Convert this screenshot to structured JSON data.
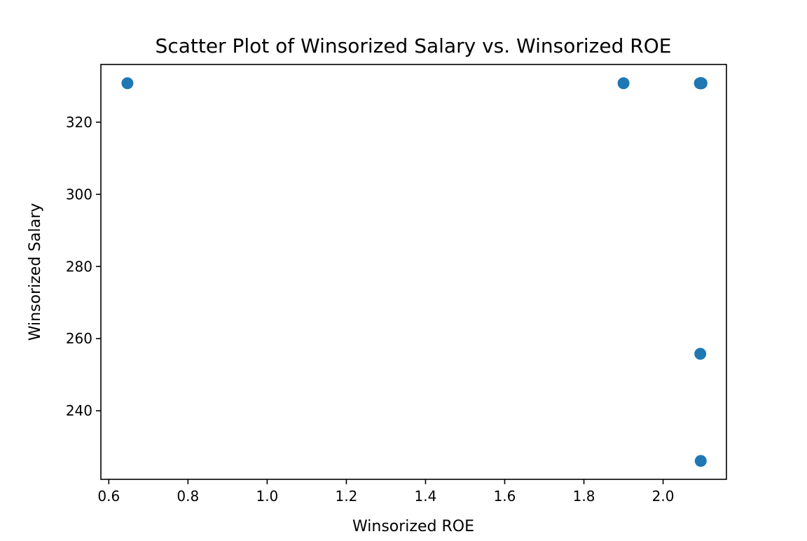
{
  "chart_data": {
    "type": "scatter",
    "title": "Scatter Plot of Winsorized Salary vs. Winsorized ROE",
    "xlabel": "Winsorized ROE",
    "ylabel": "Winsorized Salary",
    "xlim": [
      0.58,
      2.16
    ],
    "ylim": [
      221,
      336
    ],
    "xticks": [
      0.6,
      0.8,
      1.0,
      1.2,
      1.4,
      1.6,
      1.8,
      2.0
    ],
    "xtick_labels": [
      "0.6",
      "0.8",
      "1.0",
      "1.2",
      "1.4",
      "1.6",
      "1.8",
      "2.0"
    ],
    "yticks": [
      240,
      260,
      280,
      300,
      320
    ],
    "ytick_labels": [
      "240",
      "260",
      "280",
      "300",
      "320"
    ],
    "grid": false,
    "marker_color": "#1f77b4",
    "series": [
      {
        "x": [
          0.647,
          1.9,
          2.093,
          2.094,
          2.095,
          2.096,
          2.097,
          2.094,
          2.095
        ],
        "y": [
          330.8,
          330.8,
          330.8,
          330.8,
          330.8,
          330.8,
          330.8,
          255.8,
          226.1
        ]
      }
    ]
  }
}
